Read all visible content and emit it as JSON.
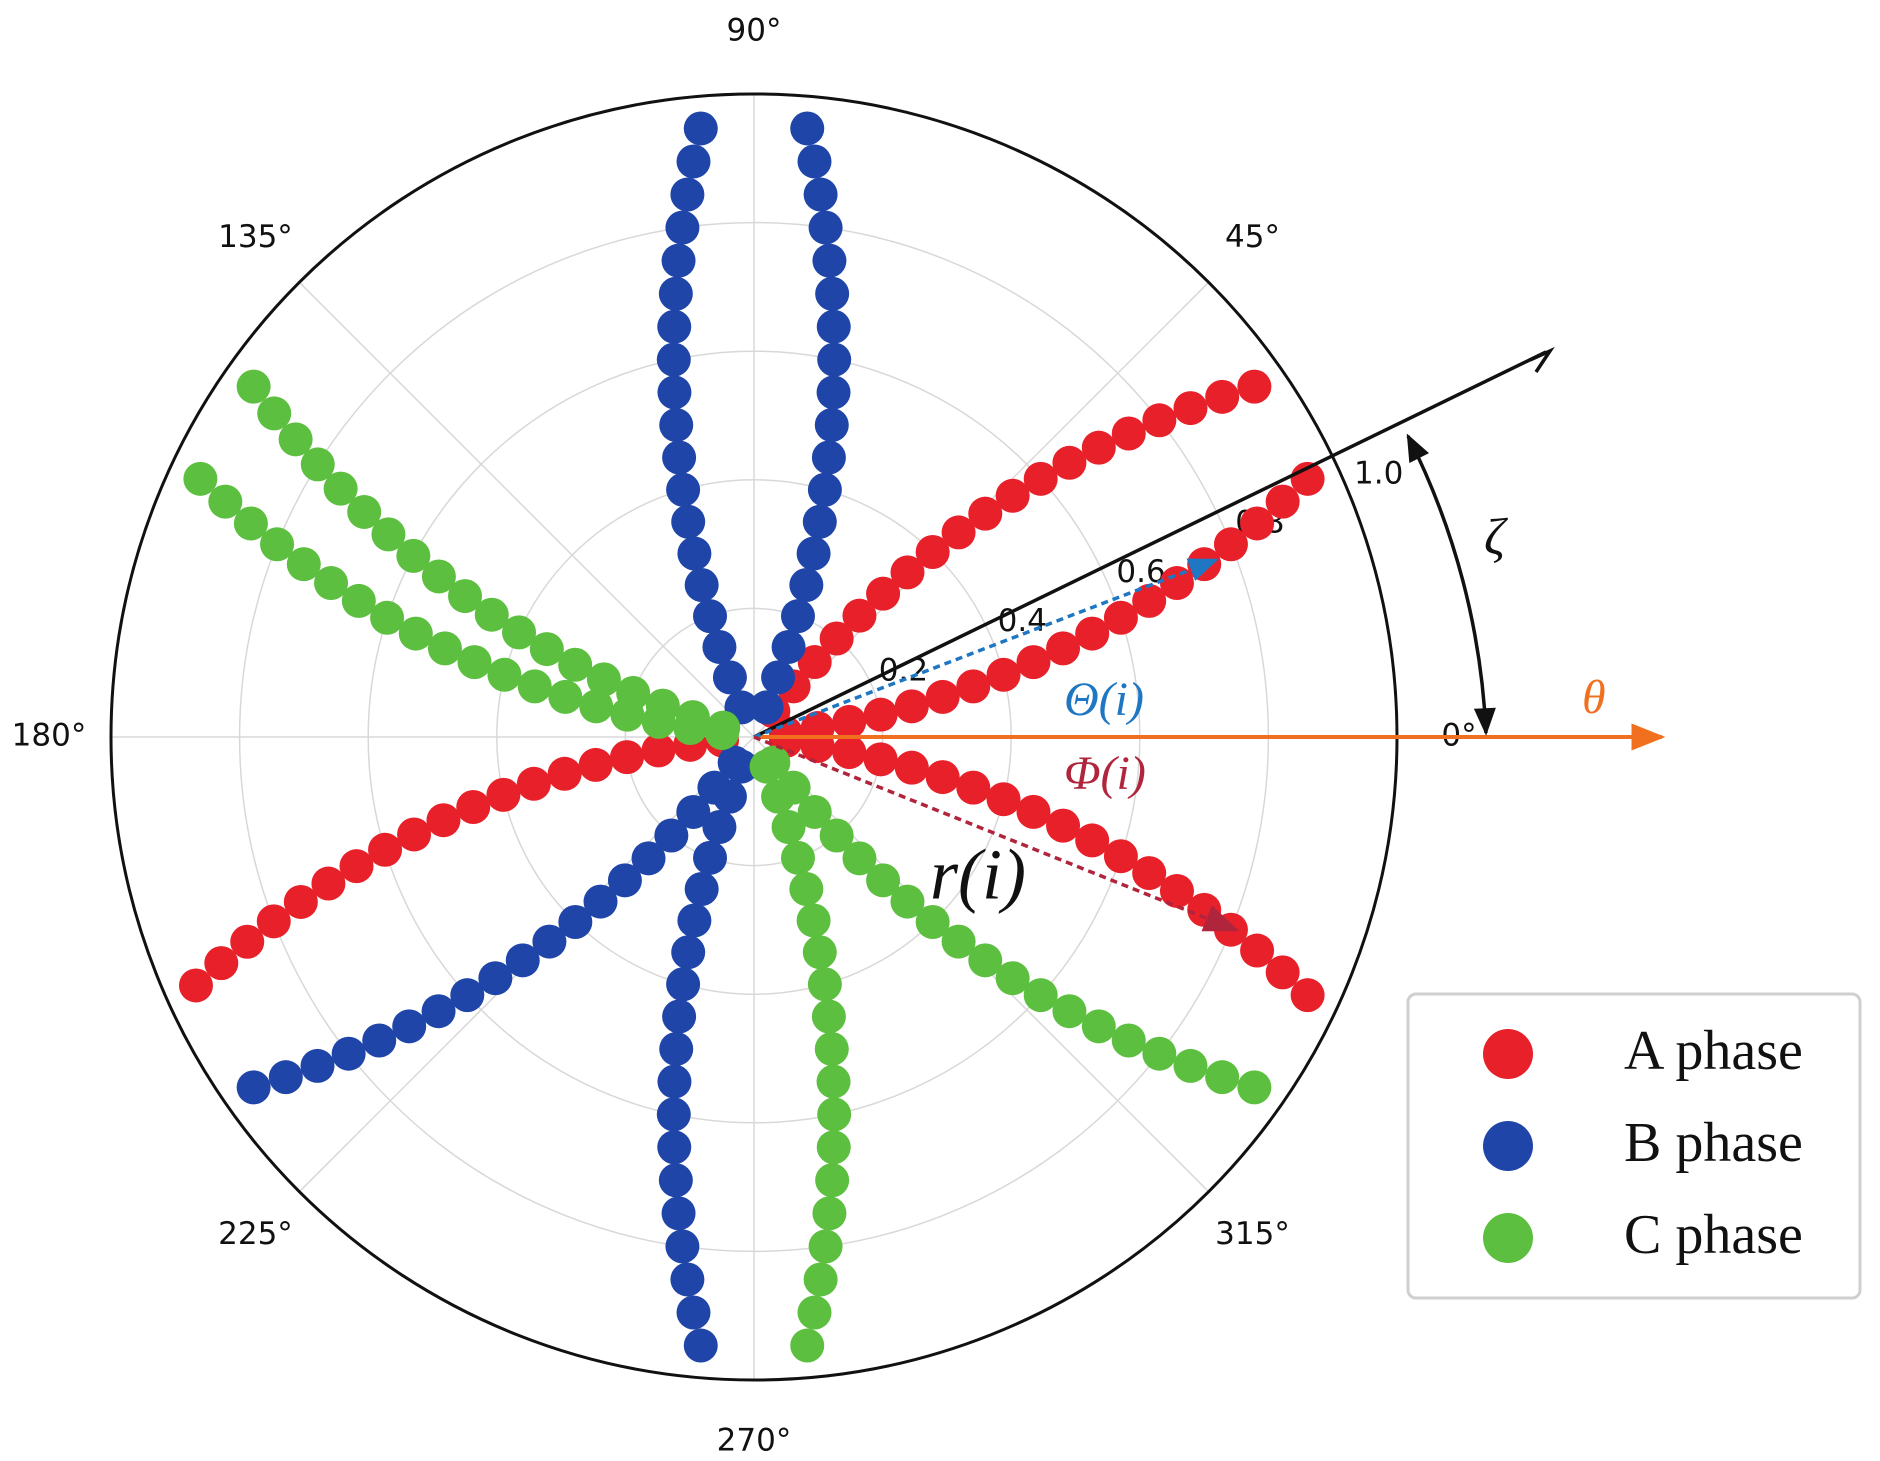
{
  "chart_data": {
    "type": "polar",
    "thetaticks": [
      {
        "value": 0,
        "label": "0°"
      },
      {
        "value": 45,
        "label": "45°"
      },
      {
        "value": 90,
        "label": "90°"
      },
      {
        "value": 135,
        "label": "135°"
      },
      {
        "value": 180,
        "label": "180°"
      },
      {
        "value": 225,
        "label": "225°"
      },
      {
        "value": 270,
        "label": "270°"
      },
      {
        "value": 315,
        "label": "315°"
      }
    ],
    "rlim": [
      0,
      1
    ],
    "rticks": [
      0.2,
      0.4,
      0.6,
      0.8,
      {
        "value": 1,
        "label": "1.0"
      }
    ],
    "grid": true,
    "legend": "lower right",
    "annotations": [
      "Θ(i)",
      "Φ(i)",
      "r(i)",
      "θ",
      "ζ"
    ],
    "series": [
      {
        "name": "A phase",
        "color": "#e8202a",
        "theta": [
          53,
          52,
          51,
          50,
          49,
          48,
          47,
          46,
          45,
          44,
          43,
          42,
          41,
          40,
          39,
          38,
          37,
          36,
          35,
          7,
          8,
          9,
          10,
          11,
          12,
          13,
          14,
          15,
          16,
          17,
          18,
          19,
          20,
          21,
          22,
          23,
          24,
          25,
          353,
          352,
          351,
          350,
          349,
          348,
          347,
          346,
          345,
          344,
          343,
          342,
          341,
          340,
          339,
          338,
          337,
          336,
          335,
          186,
          187,
          188,
          189,
          190,
          191,
          192,
          193,
          194,
          195,
          196,
          197,
          198,
          199,
          200,
          201,
          202,
          203,
          204
        ],
        "r": [
          0.05,
          0.1,
          0.15,
          0.2,
          0.25,
          0.3,
          0.35,
          0.4,
          0.45,
          0.5,
          0.55,
          0.6,
          0.65,
          0.7,
          0.75,
          0.8,
          0.85,
          0.9,
          0.95,
          0.05,
          0.1,
          0.15,
          0.2,
          0.25,
          0.3,
          0.35,
          0.4,
          0.45,
          0.5,
          0.55,
          0.6,
          0.65,
          0.7,
          0.75,
          0.8,
          0.85,
          0.9,
          0.95,
          0.05,
          0.1,
          0.15,
          0.2,
          0.25,
          0.3,
          0.35,
          0.4,
          0.45,
          0.5,
          0.55,
          0.6,
          0.65,
          0.7,
          0.75,
          0.8,
          0.85,
          0.9,
          0.95,
          0.05,
          0.1,
          0.15,
          0.2,
          0.25,
          0.3,
          0.35,
          0.4,
          0.45,
          0.5,
          0.55,
          0.6,
          0.65,
          0.7,
          0.75,
          0.8,
          0.85,
          0.9,
          0.95
        ]
      },
      {
        "name": "B phase",
        "color": "#1f45a8",
        "theta": [
          113,
          112,
          111,
          110,
          109,
          108,
          107,
          106,
          105,
          104,
          103,
          102,
          101,
          100,
          99,
          98,
          97,
          96,
          95,
          67,
          68,
          69,
          70,
          71,
          72,
          73,
          74,
          75,
          76,
          77,
          78,
          79,
          80,
          81,
          82,
          83,
          84,
          85,
          247,
          248,
          249,
          250,
          251,
          252,
          253,
          254,
          255,
          256,
          257,
          258,
          259,
          260,
          261,
          262,
          263,
          264,
          265,
          233,
          232,
          231,
          230,
          229,
          228,
          227,
          226,
          225,
          224,
          223,
          222,
          221,
          220,
          219,
          218,
          217,
          216,
          215
        ],
        "r": [
          0.05,
          0.1,
          0.15,
          0.2,
          0.25,
          0.3,
          0.35,
          0.4,
          0.45,
          0.5,
          0.55,
          0.6,
          0.65,
          0.7,
          0.75,
          0.8,
          0.85,
          0.9,
          0.95,
          0.05,
          0.1,
          0.15,
          0.2,
          0.25,
          0.3,
          0.35,
          0.4,
          0.45,
          0.5,
          0.55,
          0.6,
          0.65,
          0.7,
          0.75,
          0.8,
          0.85,
          0.9,
          0.95,
          0.05,
          0.1,
          0.15,
          0.2,
          0.25,
          0.3,
          0.35,
          0.4,
          0.45,
          0.5,
          0.55,
          0.6,
          0.65,
          0.7,
          0.75,
          0.8,
          0.85,
          0.9,
          0.95,
          0.05,
          0.1,
          0.15,
          0.2,
          0.25,
          0.3,
          0.35,
          0.4,
          0.45,
          0.5,
          0.55,
          0.6,
          0.65,
          0.7,
          0.75,
          0.8,
          0.85,
          0.9,
          0.95
        ]
      },
      {
        "name": "C phase",
        "color": "#5cbf3f",
        "theta": [
          163,
          162,
          161,
          160,
          159,
          158,
          157,
          156,
          155,
          154,
          153,
          152,
          151,
          150,
          149,
          148,
          147,
          146,
          145,
          173,
          172,
          171,
          170,
          169,
          168,
          167,
          166,
          165,
          164,
          163,
          162,
          161,
          160,
          159,
          158,
          157,
          156,
          155,
          293,
          292,
          291,
          290,
          289,
          288,
          287,
          286,
          285,
          284,
          283,
          282,
          281,
          280,
          279,
          278,
          277,
          276,
          275,
          307,
          308,
          309,
          310,
          311,
          312,
          313,
          314,
          315,
          316,
          317,
          318,
          319,
          320,
          321,
          322,
          323,
          324,
          325
        ],
        "r": [
          0.05,
          0.1,
          0.15,
          0.2,
          0.25,
          0.3,
          0.35,
          0.4,
          0.45,
          0.5,
          0.55,
          0.6,
          0.65,
          0.7,
          0.75,
          0.8,
          0.85,
          0.9,
          0.95,
          0.05,
          0.1,
          0.15,
          0.2,
          0.25,
          0.3,
          0.35,
          0.4,
          0.45,
          0.5,
          0.55,
          0.6,
          0.65,
          0.7,
          0.75,
          0.8,
          0.85,
          0.9,
          0.95,
          0.05,
          0.1,
          0.15,
          0.2,
          0.25,
          0.3,
          0.35,
          0.4,
          0.45,
          0.5,
          0.55,
          0.6,
          0.65,
          0.7,
          0.75,
          0.8,
          0.85,
          0.9,
          0.95,
          0.05,
          0.1,
          0.15,
          0.2,
          0.25,
          0.3,
          0.35,
          0.4,
          0.45,
          0.5,
          0.55,
          0.6,
          0.65,
          0.7,
          0.75,
          0.8,
          0.85,
          0.9,
          0.95
        ]
      }
    ]
  }
}
